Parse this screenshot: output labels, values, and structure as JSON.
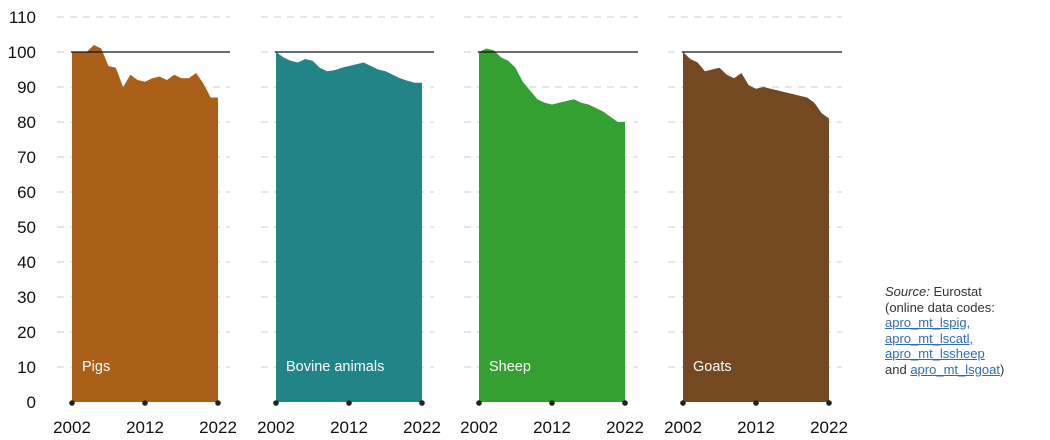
{
  "colors": {
    "pigs": "#ab601a",
    "bovine": "#218587",
    "sheep": "#34a031",
    "goats": "#744820",
    "grid": "#cccccc",
    "reference": "#111111"
  },
  "chart_data": {
    "type": "area",
    "ylim": [
      0,
      110
    ],
    "yticks": [
      0,
      10,
      20,
      30,
      40,
      50,
      60,
      70,
      80,
      90,
      100,
      110
    ],
    "x": [
      2002,
      2003,
      2004,
      2005,
      2006,
      2007,
      2008,
      2009,
      2010,
      2011,
      2012,
      2013,
      2014,
      2015,
      2016,
      2017,
      2018,
      2019,
      2020,
      2021,
      2022
    ],
    "xticks": [
      2002,
      2012,
      2022
    ],
    "reference_line": 100,
    "grid": true,
    "panels": [
      {
        "name": "Pigs",
        "color_key": "pigs",
        "values": [
          100,
          100,
          100,
          102,
          101,
          96,
          95.5,
          90,
          93.5,
          92,
          91.5,
          92.5,
          93,
          92,
          93.5,
          92.5,
          92.5,
          94,
          91,
          87,
          87
        ]
      },
      {
        "name": "Bovine animals",
        "color_key": "bovine",
        "values": [
          100,
          98.5,
          97.5,
          97,
          98,
          97.5,
          95.5,
          94.5,
          94.8,
          95.5,
          96,
          96.5,
          97,
          96,
          95,
          94.5,
          93.5,
          92.5,
          91.8,
          91.2,
          91.2
        ]
      },
      {
        "name": "Sheep",
        "color_key": "sheep",
        "values": [
          100,
          101,
          100.5,
          98.5,
          97.5,
          95.5,
          91.5,
          89,
          86.5,
          85.5,
          85,
          85.5,
          86,
          86.5,
          85.5,
          85,
          84,
          83,
          81.5,
          80,
          80
        ]
      },
      {
        "name": "Goats",
        "color_key": "goats",
        "values": [
          100,
          98,
          97,
          94.5,
          95,
          95.5,
          93.5,
          92.5,
          94,
          90.5,
          89.5,
          90,
          89.5,
          89,
          88.5,
          88,
          87.5,
          87,
          85.5,
          82.5,
          81
        ]
      }
    ]
  },
  "source": {
    "label": "Source:",
    "text": "Eurostat",
    "line2": "(online data codes:",
    "codes": [
      "apro_mt_lspig,",
      "apro_mt_lscatl,",
      "apro_mt_lssheep"
    ],
    "and": "and",
    "last_code": "apro_mt_lsgoat",
    "close": ")"
  }
}
